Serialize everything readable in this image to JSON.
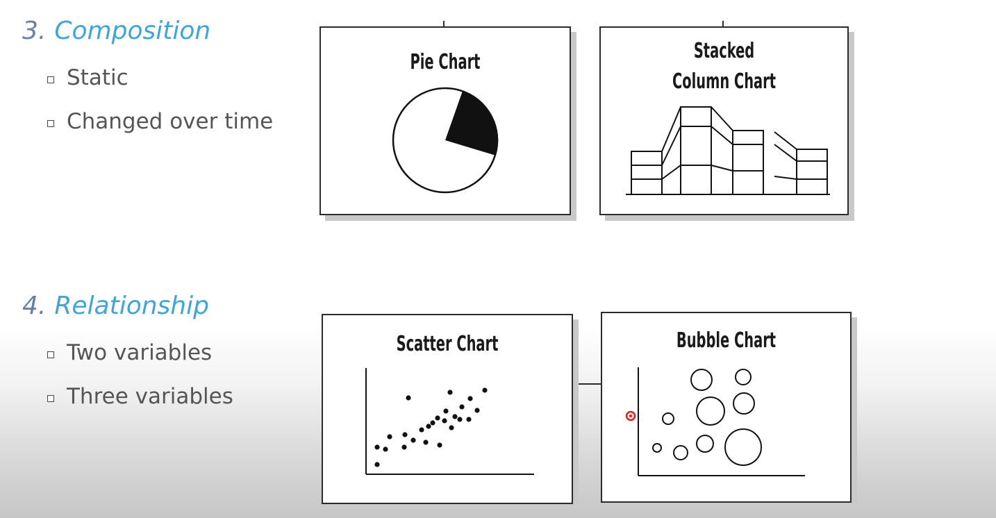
{
  "sections": [
    {
      "number": "3.",
      "title": "Composition",
      "bullets": [
        "Static",
        "Changed over time"
      ]
    },
    {
      "number": "4.",
      "title": "Relationship",
      "bullets": [
        "Two variables",
        "Three variables"
      ]
    }
  ],
  "cards": {
    "pie": {
      "title": "Pie Chart"
    },
    "stacked": {
      "title_line1": "Stacked",
      "title_line2": "Column Chart"
    },
    "scatter": {
      "title": "Scatter Chart"
    },
    "bubble": {
      "title": "Bubble Chart"
    }
  },
  "colors": {
    "heading": "#3fa4d8",
    "number": "#6a7ea8",
    "bullet_text": "#555555",
    "cursor": "#e02020"
  }
}
